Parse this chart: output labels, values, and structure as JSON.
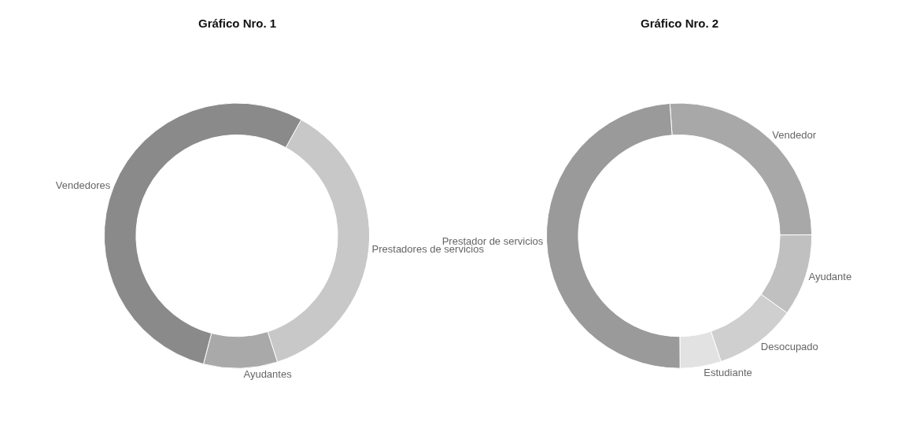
{
  "chart_data": [
    {
      "type": "donut",
      "title": "Gráfico Nro. 1",
      "categories": [
        "Prestadores de servicios",
        "Ayudantes",
        "Vendedores"
      ],
      "values": [
        37,
        9,
        54
      ],
      "colors": [
        "#c8c8c8",
        "#a9a9a9",
        "#8a8a8a"
      ],
      "legend": false
    },
    {
      "type": "donut",
      "title": "Gráfico Nro. 2",
      "categories": [
        "Vendedor",
        "Ayudante",
        "Desocupado",
        "Estudiante",
        "Prestador de servicios"
      ],
      "values": [
        26,
        10,
        10,
        5,
        49
      ],
      "colors": [
        "#a8a8a8",
        "#c0c0c0",
        "#cfcfcf",
        "#e2e2e2",
        "#9a9a9a"
      ],
      "legend": false
    }
  ]
}
